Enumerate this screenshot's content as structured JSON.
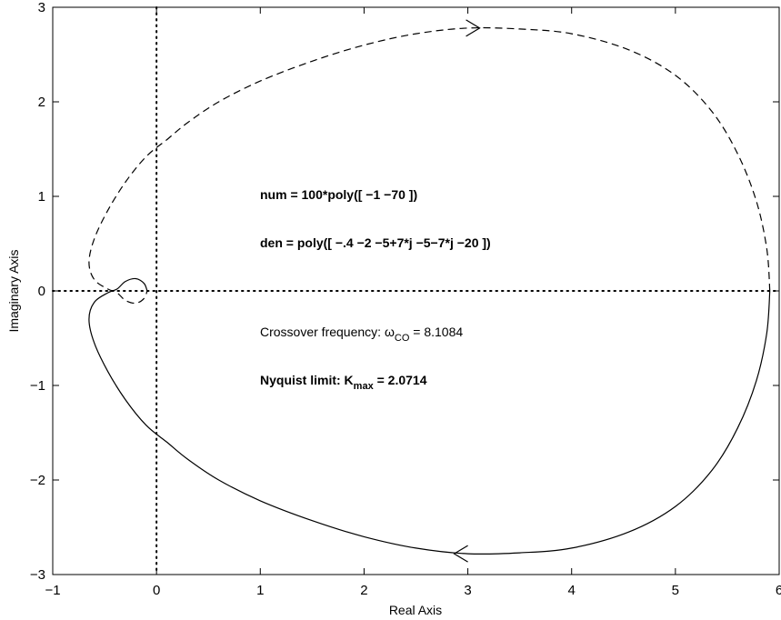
{
  "chart_data": {
    "type": "line",
    "title": "",
    "xlabel": "Real Axis",
    "ylabel": "Imaginary Axis",
    "xlim": [
      -1,
      6
    ],
    "ylim": [
      -3,
      3
    ],
    "xticks": [
      "−1",
      "0",
      "1",
      "2",
      "3",
      "4",
      "5",
      "6"
    ],
    "yticks": [
      "3",
      "2",
      "1",
      "0",
      "−1",
      "−2",
      "−3"
    ],
    "grid": false,
    "reference_lines": {
      "x0": "dotted",
      "y0": "dotted"
    },
    "series": [
      {
        "style": "solid",
        "direction": "counter-clockwise (arrow pointing left near bottom)",
        "points": [
          [
            5.91,
            0.0
          ],
          [
            5.88,
            -0.45
          ],
          [
            5.78,
            -0.95
          ],
          [
            5.6,
            -1.45
          ],
          [
            5.35,
            -1.9
          ],
          [
            5.0,
            -2.28
          ],
          [
            4.55,
            -2.55
          ],
          [
            4.0,
            -2.72
          ],
          [
            3.5,
            -2.77
          ],
          [
            3.0,
            -2.78
          ],
          [
            2.5,
            -2.72
          ],
          [
            2.0,
            -2.6
          ],
          [
            1.5,
            -2.43
          ],
          [
            1.0,
            -2.22
          ],
          [
            0.6,
            -2.0
          ],
          [
            0.3,
            -1.78
          ],
          [
            0.1,
            -1.6
          ],
          [
            -0.1,
            -1.42
          ],
          [
            -0.3,
            -1.15
          ],
          [
            -0.47,
            -0.85
          ],
          [
            -0.6,
            -0.55
          ],
          [
            -0.65,
            -0.3
          ],
          [
            -0.6,
            -0.12
          ],
          [
            -0.47,
            -0.02
          ],
          [
            -0.38,
            0.02
          ],
          [
            -0.3,
            0.1
          ],
          [
            -0.2,
            0.13
          ],
          [
            -0.12,
            0.08
          ],
          [
            -0.09,
            0.0
          ]
        ]
      },
      {
        "style": "dashed",
        "direction": "clockwise (arrow pointing right near top)",
        "points": [
          [
            5.91,
            0.0
          ],
          [
            5.88,
            0.45
          ],
          [
            5.78,
            0.95
          ],
          [
            5.6,
            1.45
          ],
          [
            5.35,
            1.9
          ],
          [
            5.0,
            2.28
          ],
          [
            4.55,
            2.55
          ],
          [
            4.0,
            2.72
          ],
          [
            3.5,
            2.77
          ],
          [
            3.0,
            2.78
          ],
          [
            2.5,
            2.72
          ],
          [
            2.0,
            2.6
          ],
          [
            1.5,
            2.43
          ],
          [
            1.0,
            2.22
          ],
          [
            0.6,
            2.0
          ],
          [
            0.3,
            1.78
          ],
          [
            0.1,
            1.6
          ],
          [
            -0.1,
            1.42
          ],
          [
            -0.3,
            1.15
          ],
          [
            -0.47,
            0.85
          ],
          [
            -0.6,
            0.55
          ],
          [
            -0.65,
            0.3
          ],
          [
            -0.6,
            0.12
          ],
          [
            -0.47,
            0.02
          ],
          [
            -0.38,
            -0.02
          ],
          [
            -0.3,
            -0.1
          ],
          [
            -0.2,
            -0.13
          ],
          [
            -0.12,
            -0.08
          ],
          [
            -0.09,
            0.0
          ]
        ]
      }
    ],
    "annotations": {
      "num": "num = 100*poly([ −1 −70 ])",
      "den": "den = poly([ −.4 −2 −5+7*j −5−7*j −20 ])",
      "crossover_prefix": "Crossover frequency: ω",
      "crossover_sub": "CO",
      "crossover_suffix": " = 8.1084",
      "nyquist_prefix": "Nyquist limit: K",
      "nyquist_sub": "max",
      "nyquist_suffix": " = 2.0714"
    }
  }
}
